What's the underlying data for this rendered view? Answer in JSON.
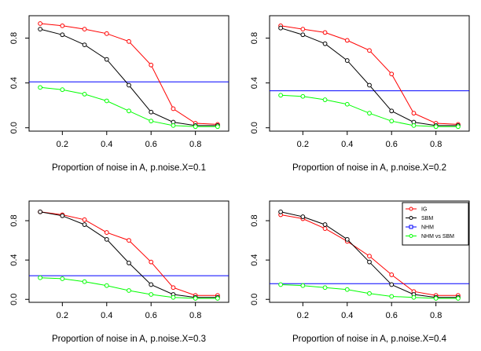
{
  "chart_data": [
    {
      "type": "line",
      "xlabel": "Proportion of noise in A, p.noise.X=0.1",
      "ylabel": "",
      "xlim": [
        0.05,
        0.95
      ],
      "ylim": [
        -0.03,
        1.0
      ],
      "xticks": [
        "0.2",
        "0.4",
        "0.6",
        "0.8"
      ],
      "yticks": [
        "0.0",
        "0.4",
        "0.8"
      ],
      "x": [
        0.1,
        0.2,
        0.3,
        0.4,
        0.5,
        0.6,
        0.7,
        0.8,
        0.9
      ],
      "series": [
        {
          "key": "ig",
          "color": "#ff0000",
          "values": [
            0.93,
            0.91,
            0.88,
            0.84,
            0.77,
            0.56,
            0.17,
            0.04,
            0.03
          ]
        },
        {
          "key": "sbm",
          "color": "#000000",
          "values": [
            0.88,
            0.83,
            0.74,
            0.61,
            0.38,
            0.14,
            0.05,
            0.02,
            0.02
          ]
        },
        {
          "key": "nhm-vs-sbm",
          "color": "#00ff00",
          "values": [
            0.36,
            0.34,
            0.3,
            0.24,
            0.15,
            0.06,
            0.02,
            0.01,
            0.01
          ]
        }
      ],
      "hline": {
        "key": "nhm",
        "color": "#0000ff",
        "value": 0.41
      },
      "legend": false
    },
    {
      "type": "line",
      "xlabel": "Proportion of noise in A, p.noise.X=0.2",
      "ylabel": "",
      "xlim": [
        0.05,
        0.95
      ],
      "ylim": [
        -0.03,
        1.0
      ],
      "xticks": [
        "0.2",
        "0.4",
        "0.6",
        "0.8"
      ],
      "yticks": [
        "0.0",
        "0.4",
        "0.8"
      ],
      "x": [
        0.1,
        0.2,
        0.3,
        0.4,
        0.5,
        0.6,
        0.7,
        0.8,
        0.9
      ],
      "series": [
        {
          "key": "ig",
          "color": "#ff0000",
          "values": [
            0.91,
            0.88,
            0.85,
            0.78,
            0.69,
            0.48,
            0.13,
            0.04,
            0.03
          ]
        },
        {
          "key": "sbm",
          "color": "#000000",
          "values": [
            0.89,
            0.83,
            0.75,
            0.6,
            0.38,
            0.15,
            0.05,
            0.02,
            0.02
          ]
        },
        {
          "key": "nhm-vs-sbm",
          "color": "#00ff00",
          "values": [
            0.29,
            0.28,
            0.25,
            0.21,
            0.13,
            0.06,
            0.02,
            0.01,
            0.01
          ]
        }
      ],
      "hline": {
        "key": "nhm",
        "color": "#0000ff",
        "value": 0.33
      },
      "legend": false
    },
    {
      "type": "line",
      "xlabel": "Proportion of noise in A, p.noise.X=0.3",
      "ylabel": "",
      "xlim": [
        0.05,
        0.95
      ],
      "ylim": [
        -0.03,
        1.0
      ],
      "xticks": [
        "0.2",
        "0.4",
        "0.6",
        "0.8"
      ],
      "yticks": [
        "0.0",
        "0.4",
        "0.8"
      ],
      "x": [
        0.1,
        0.2,
        0.3,
        0.4,
        0.5,
        0.6,
        0.7,
        0.8,
        0.9
      ],
      "series": [
        {
          "key": "ig",
          "color": "#ff0000",
          "values": [
            0.89,
            0.86,
            0.81,
            0.68,
            0.6,
            0.38,
            0.12,
            0.04,
            0.04
          ]
        },
        {
          "key": "sbm",
          "color": "#000000",
          "values": [
            0.89,
            0.85,
            0.76,
            0.61,
            0.37,
            0.15,
            0.05,
            0.02,
            0.02
          ]
        },
        {
          "key": "nhm-vs-sbm",
          "color": "#00ff00",
          "values": [
            0.22,
            0.21,
            0.18,
            0.14,
            0.09,
            0.05,
            0.02,
            0.01,
            0.01
          ]
        }
      ],
      "hline": {
        "key": "nhm",
        "color": "#0000ff",
        "value": 0.24
      },
      "legend": false
    },
    {
      "type": "line",
      "xlabel": "Proportion of noise in A, p.noise.X=0.4",
      "ylabel": "",
      "xlim": [
        0.05,
        0.95
      ],
      "ylim": [
        -0.03,
        1.0
      ],
      "xticks": [
        "0.2",
        "0.4",
        "0.6",
        "0.8"
      ],
      "yticks": [
        "0.0",
        "0.4",
        "0.8"
      ],
      "x": [
        0.1,
        0.2,
        0.3,
        0.4,
        0.5,
        0.6,
        0.7,
        0.8,
        0.9
      ],
      "series": [
        {
          "key": "ig",
          "color": "#ff0000",
          "values": [
            0.86,
            0.82,
            0.72,
            0.59,
            0.44,
            0.25,
            0.08,
            0.04,
            0.04
          ]
        },
        {
          "key": "sbm",
          "color": "#000000",
          "values": [
            0.89,
            0.84,
            0.76,
            0.61,
            0.38,
            0.15,
            0.05,
            0.02,
            0.02
          ]
        },
        {
          "key": "nhm-vs-sbm",
          "color": "#00ff00",
          "values": [
            0.15,
            0.14,
            0.12,
            0.1,
            0.06,
            0.03,
            0.02,
            0.01,
            0.01
          ]
        }
      ],
      "hline": {
        "key": "nhm",
        "color": "#0000ff",
        "value": 0.16
      },
      "legend": true
    }
  ],
  "legend": {
    "placement": "top-right",
    "entries": [
      {
        "label": "IG",
        "color": "#ff0000",
        "marker": "circle"
      },
      {
        "label": "SBM",
        "color": "#000000",
        "marker": "circle"
      },
      {
        "label": "NHM",
        "color": "#0000ff",
        "marker": "square"
      },
      {
        "label": "NHM vs SBM",
        "color": "#00ff00",
        "marker": "circle"
      }
    ]
  }
}
